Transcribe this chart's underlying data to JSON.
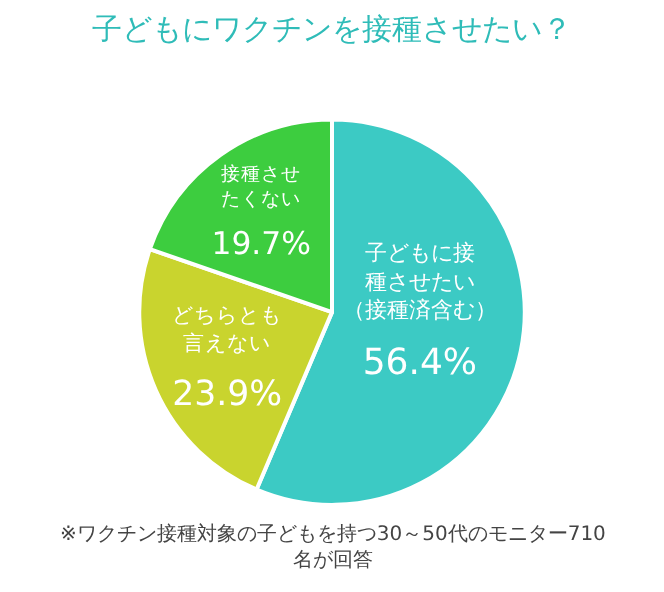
{
  "chart_data": {
    "type": "pie",
    "title": "子どもにワクチンを接種させたい？",
    "categories": [
      "子どもに接種させたい（接種済含む）",
      "どちらとも言えない",
      "接種させたくない"
    ],
    "values": [
      56.4,
      23.9,
      19.7
    ],
    "value_labels": [
      "56.4%",
      "23.9%",
      "19.7%"
    ],
    "colors": [
      "#3ccac4",
      "#c9d42e",
      "#3dcd3f"
    ],
    "annotations": [
      "※ワクチン接種対象の子どもを持つ30～50代のモニター710名が回答"
    ],
    "legend": false
  }
}
